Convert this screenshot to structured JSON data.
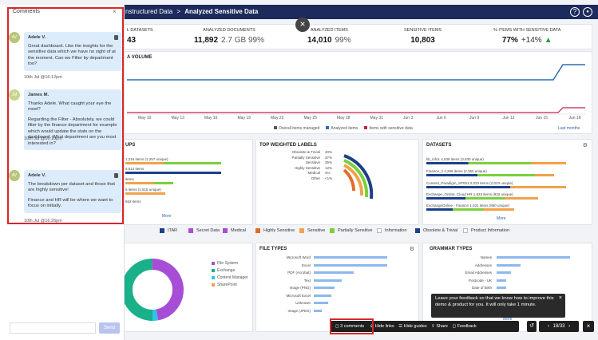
{
  "header": {
    "breadcrumb_prev": "nstructured Data",
    "separator": ">",
    "breadcrumb_current": "Analyzed Sensitive Data",
    "help_icon": "?",
    "user_icon": "user"
  },
  "kpis": [
    {
      "label": "L DATASETS",
      "value": "43"
    },
    {
      "label": "ANALYZED DOCUMENTS",
      "value": "11,892",
      "extra": "2.7 GB  99%"
    },
    {
      "label": "ANALYZED ITEMS",
      "value": "14,010",
      "extra": "99%"
    },
    {
      "label": "SENSITIVE ITEMS",
      "value": "10,803"
    },
    {
      "label": "% ITEMS WITH SENSITIVE DATA",
      "value": "77%",
      "extra": "+14%"
    }
  ],
  "volume": {
    "title": "A VOLUME",
    "x_labels": [
      "May 10",
      "May 13",
      "May 16",
      "May 19",
      "May 22",
      "May 25",
      "May 28",
      "May 31",
      "Jun 3",
      "Jun 6",
      "Jun 9",
      "Jun 12",
      "Jun 15",
      "Jun 18"
    ],
    "legend": [
      "Overall items managed",
      "Analyzed items",
      "Items with sensitive data"
    ],
    "last_label": "Last months"
  },
  "groups": {
    "title": "UPS",
    "rows": [
      "1,316 items (1,257 unique)",
      "6,613 items",
      "items",
      "5 items (1,515 unique)",
      "652 items"
    ],
    "more": "More"
  },
  "labels_widget": {
    "title": "TOP WEIGHTED LABELS",
    "items": [
      {
        "name": "Obsolete & Trivial",
        "pct": "40%"
      },
      {
        "name": "Partially Sensitive",
        "pct": "37%"
      },
      {
        "name": "Sensitive",
        "pct": "35%"
      },
      {
        "name": "Highly Sensitive",
        "pct": "12%"
      },
      {
        "name": "Medical",
        "pct": "4%"
      },
      {
        "name": "Other",
        "pct": "<1%"
      }
    ]
  },
  "datasets": {
    "title": "DATASETS",
    "rows": [
      "kb_info1  4,538 items (3,530 unique)",
      "Finance_2  4,296 items (2,360 unique)",
      "Content_Paradigm_SP001  2,023 items (2,023 unique)",
      "Exchange_Online_Cloud HR  1,623 items (932 unique)",
      "ExchangeOnline - Finance  1,031 items (860 unique)"
    ],
    "more": "More"
  },
  "filters": [
    "ITAR",
    "Secret Data",
    "Medical",
    "Highly Sensitive",
    "Sensitive",
    "Partially Sensitive",
    "Information",
    "Obsolete & Trivial",
    "Product Information"
  ],
  "donut": {
    "legend": [
      "File System",
      "Exchange",
      "Content Manager",
      "SharePoint"
    ]
  },
  "file_types": {
    "title": "FILE TYPES",
    "items": [
      "Microsoft Word",
      "Excel",
      "PDF (Acrobat)",
      "Text",
      "Image (PNG)",
      "Microsoft Excel",
      "Unknown",
      "Image (JPEG)"
    ]
  },
  "grammar": {
    "title": "GRAMMAR TYPES",
    "items": [
      "Names",
      "Addresses",
      "Email Addresses",
      "Postcode - UK",
      "Date of Birth"
    ],
    "more": "More"
  },
  "feedback_tip": {
    "text": "Leave your feedback so that we know how to improve this demo & product for you. It will only take 1 minute."
  },
  "comments": {
    "title": "Comments",
    "close": "×",
    "send": "Send",
    "input_placeholder": "",
    "items": [
      {
        "initials": "AV",
        "name": "Adele V.",
        "text": "Great dashboard. Like the insights for the sensitive data which we have no sight of at the moment. Can we Filter by department too?",
        "time": "10th Jul @16:12pm"
      },
      {
        "initials": "JM",
        "name": "James M.",
        "text": "Thanks Adele. What caught your eye the most?\n\nRegarding the Filter - Absolutely, we could filter by the finance department for example which would update the stats on the dashboard. What department are you most interested in?",
        "time": "10th Jul @16:18pm"
      },
      {
        "initials": "AV",
        "name": "Adele V.",
        "text": "The breakdown per dataset and those that are highly sensitive!\n\nFinance and HR will be where we want to focus on initially.",
        "time": "10th Jul @16:26pm"
      }
    ]
  },
  "toolbar": {
    "comments": "3 comments",
    "hide_links": "Hide links",
    "hide_guides": "Hide guides",
    "share": "Share",
    "feedback": "Feedback",
    "page": "18/33"
  },
  "overlay_close": "×"
}
